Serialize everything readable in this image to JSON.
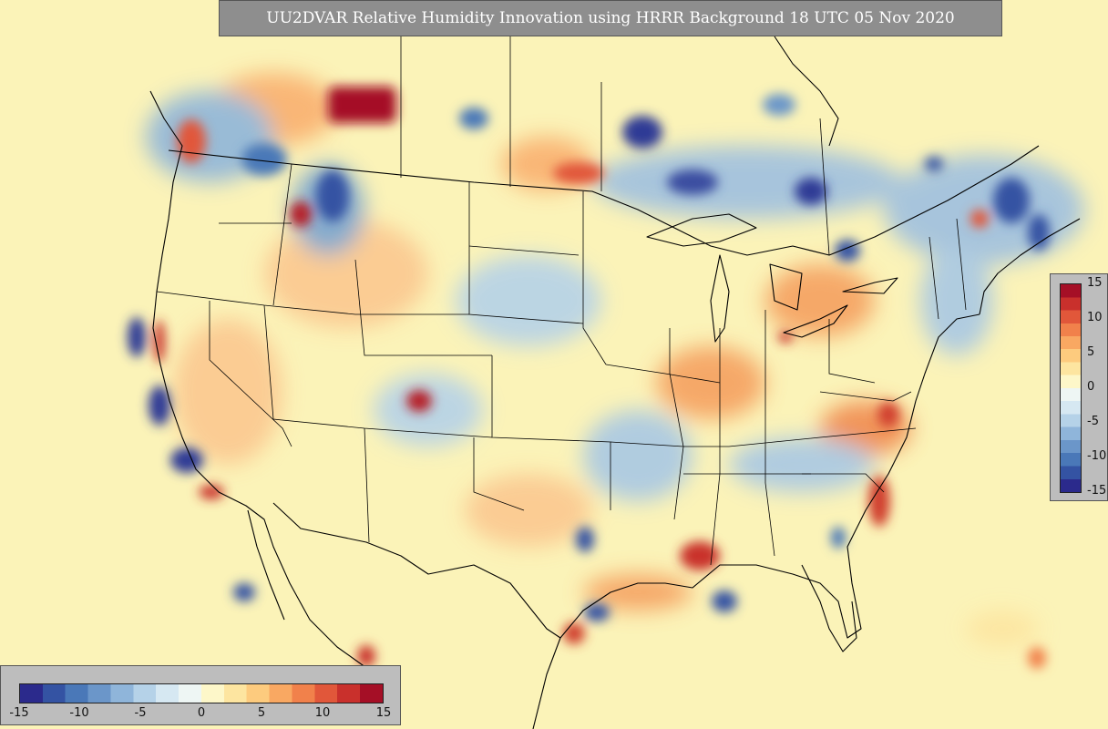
{
  "title": "UU2DVAR Relative Humidity Innovation using HRRR Background 18 UTC 05 Nov 2020",
  "colorbar": {
    "min": -15,
    "max": 15,
    "vertical_ticks": [
      "15",
      "10",
      "5",
      "0",
      "-5",
      "-10",
      "-15"
    ],
    "horizontal_ticks": [
      "-15",
      "-10",
      "-5",
      "0",
      "5",
      "10",
      "15"
    ],
    "colors": [
      "#2b2a8c",
      "#3453a3",
      "#4a78b8",
      "#6b96c9",
      "#8fb5da",
      "#b5d2e8",
      "#d6e8f2",
      "#eef6f4",
      "#fdf7c9",
      "#fde5a0",
      "#fdcb7e",
      "#f9a862",
      "#f1814b",
      "#e1573a",
      "#c9302c",
      "#a50f26"
    ]
  },
  "map_colors": {
    "background": "#fbf3b8",
    "moist": "#2f3b95",
    "moist_light": "#8fb5da",
    "dry": "#b51a28",
    "dry_light": "#f6a05a",
    "boundary": "#000000"
  }
}
